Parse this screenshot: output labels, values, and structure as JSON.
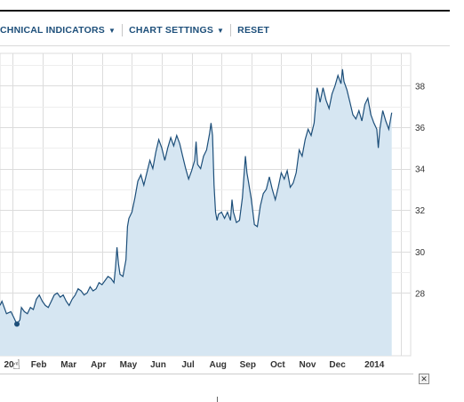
{
  "toolbar": {
    "technical_indicators": "CHNICAL INDICATORS",
    "chart_settings": "CHART SETTINGS",
    "reset": "RESET",
    "caret_icon": "caret-down-icon"
  },
  "close_button": {
    "label": "✕"
  },
  "cursor": {
    "icon": "hand-pointer-icon",
    "glyph": "☝"
  },
  "colors": {
    "line": "#1d4f7a",
    "fill": "#d6e6f2",
    "grid": "#dcdcdc",
    "text": "#333333",
    "marker": "#1d4f7a"
  },
  "chart_data": {
    "type": "area",
    "x_tick_labels": [
      "20",
      "Feb",
      "Mar",
      "Apr",
      "May",
      "Jun",
      "Jul",
      "Aug",
      "Sep",
      "Oct",
      "Nov",
      "Dec",
      "2014"
    ],
    "y_ticks": [
      28,
      30,
      32,
      34,
      36,
      38
    ],
    "ylim": [
      26,
      40
    ],
    "xlim": [
      0,
      13
    ],
    "marker": {
      "x": 0.15,
      "y": 26.5
    },
    "series": [
      {
        "values": [
          [
            -0.5,
            27.4
          ],
          [
            -0.35,
            27.6
          ],
          [
            -0.2,
            27.0
          ],
          [
            -0.05,
            27.1
          ],
          [
            0.05,
            26.8
          ],
          [
            0.15,
            26.5
          ],
          [
            0.25,
            26.7
          ],
          [
            0.3,
            27.3
          ],
          [
            0.4,
            27.1
          ],
          [
            0.5,
            27.0
          ],
          [
            0.6,
            27.3
          ],
          [
            0.7,
            27.2
          ],
          [
            0.8,
            27.7
          ],
          [
            0.9,
            27.9
          ],
          [
            1.0,
            27.6
          ],
          [
            1.1,
            27.4
          ],
          [
            1.2,
            27.3
          ],
          [
            1.3,
            27.6
          ],
          [
            1.4,
            27.9
          ],
          [
            1.5,
            28.0
          ],
          [
            1.6,
            27.8
          ],
          [
            1.7,
            27.9
          ],
          [
            1.8,
            27.6
          ],
          [
            1.9,
            27.4
          ],
          [
            2.0,
            27.7
          ],
          [
            2.1,
            27.9
          ],
          [
            2.2,
            28.2
          ],
          [
            2.3,
            28.1
          ],
          [
            2.4,
            27.9
          ],
          [
            2.5,
            28.0
          ],
          [
            2.6,
            28.3
          ],
          [
            2.7,
            28.1
          ],
          [
            2.8,
            28.2
          ],
          [
            2.9,
            28.5
          ],
          [
            3.0,
            28.4
          ],
          [
            3.1,
            28.6
          ],
          [
            3.2,
            28.8
          ],
          [
            3.3,
            28.7
          ],
          [
            3.4,
            28.5
          ],
          [
            3.45,
            29.2
          ],
          [
            3.5,
            30.2
          ],
          [
            3.55,
            29.4
          ],
          [
            3.6,
            28.9
          ],
          [
            3.7,
            28.8
          ],
          [
            3.8,
            29.6
          ],
          [
            3.85,
            31.2
          ],
          [
            3.9,
            31.6
          ],
          [
            4.0,
            31.9
          ],
          [
            4.1,
            32.6
          ],
          [
            4.2,
            33.4
          ],
          [
            4.3,
            33.7
          ],
          [
            4.4,
            33.2
          ],
          [
            4.5,
            33.8
          ],
          [
            4.6,
            34.4
          ],
          [
            4.7,
            34.0
          ],
          [
            4.8,
            34.8
          ],
          [
            4.9,
            35.4
          ],
          [
            5.0,
            35.0
          ],
          [
            5.1,
            34.4
          ],
          [
            5.2,
            35.0
          ],
          [
            5.3,
            35.5
          ],
          [
            5.4,
            35.1
          ],
          [
            5.5,
            35.6
          ],
          [
            5.6,
            35.2
          ],
          [
            5.7,
            34.6
          ],
          [
            5.8,
            34.0
          ],
          [
            5.9,
            33.5
          ],
          [
            6.0,
            33.9
          ],
          [
            6.1,
            34.4
          ],
          [
            6.15,
            35.3
          ],
          [
            6.2,
            34.2
          ],
          [
            6.3,
            34.0
          ],
          [
            6.4,
            34.6
          ],
          [
            6.5,
            34.9
          ],
          [
            6.6,
            35.7
          ],
          [
            6.65,
            36.2
          ],
          [
            6.7,
            35.6
          ],
          [
            6.75,
            33.2
          ],
          [
            6.8,
            31.9
          ],
          [
            6.85,
            31.5
          ],
          [
            6.9,
            31.8
          ],
          [
            7.0,
            31.9
          ],
          [
            7.1,
            31.6
          ],
          [
            7.2,
            31.9
          ],
          [
            7.3,
            31.5
          ],
          [
            7.35,
            32.5
          ],
          [
            7.4,
            31.9
          ],
          [
            7.5,
            31.4
          ],
          [
            7.6,
            31.5
          ],
          [
            7.7,
            32.6
          ],
          [
            7.8,
            34.6
          ],
          [
            7.85,
            33.8
          ],
          [
            7.9,
            33.4
          ],
          [
            8.0,
            32.5
          ],
          [
            8.1,
            31.3
          ],
          [
            8.2,
            31.2
          ],
          [
            8.3,
            32.2
          ],
          [
            8.4,
            32.8
          ],
          [
            8.5,
            33.0
          ],
          [
            8.6,
            33.6
          ],
          [
            8.7,
            33.0
          ],
          [
            8.8,
            32.5
          ],
          [
            8.9,
            33.1
          ],
          [
            9.0,
            33.8
          ],
          [
            9.1,
            33.5
          ],
          [
            9.2,
            33.9
          ],
          [
            9.3,
            33.1
          ],
          [
            9.4,
            33.3
          ],
          [
            9.5,
            33.8
          ],
          [
            9.6,
            34.9
          ],
          [
            9.7,
            34.6
          ],
          [
            9.8,
            35.4
          ],
          [
            9.9,
            35.9
          ],
          [
            10.0,
            35.6
          ],
          [
            10.1,
            36.2
          ],
          [
            10.2,
            37.9
          ],
          [
            10.25,
            37.6
          ],
          [
            10.3,
            37.2
          ],
          [
            10.4,
            37.9
          ],
          [
            10.5,
            37.3
          ],
          [
            10.6,
            36.9
          ],
          [
            10.7,
            37.6
          ],
          [
            10.8,
            38.0
          ],
          [
            10.9,
            38.5
          ],
          [
            11.0,
            38.1
          ],
          [
            11.05,
            38.8
          ],
          [
            11.1,
            38.2
          ],
          [
            11.2,
            37.8
          ],
          [
            11.3,
            37.2
          ],
          [
            11.4,
            36.6
          ],
          [
            11.5,
            36.4
          ],
          [
            11.6,
            36.8
          ],
          [
            11.7,
            36.3
          ],
          [
            11.8,
            37.1
          ],
          [
            11.9,
            37.4
          ],
          [
            12.0,
            36.6
          ],
          [
            12.1,
            36.2
          ],
          [
            12.2,
            35.9
          ],
          [
            12.25,
            35.0
          ],
          [
            12.3,
            35.9
          ],
          [
            12.4,
            36.8
          ],
          [
            12.5,
            36.3
          ],
          [
            12.6,
            35.9
          ],
          [
            12.7,
            36.7
          ]
        ]
      }
    ]
  }
}
